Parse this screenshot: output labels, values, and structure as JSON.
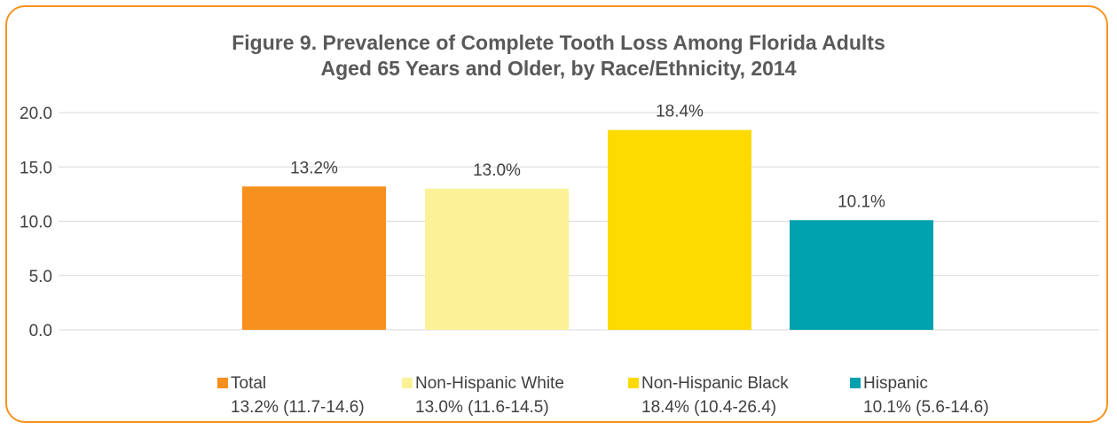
{
  "chart_data": {
    "type": "bar",
    "title_lines": [
      "Figure 9. Prevalence of Complete Tooth Loss Among Florida Adults",
      "Aged 65 Years and Older, by Race/Ethnicity, 2014"
    ],
    "categories": [
      "Total",
      "Non-Hispanic White",
      "Non-Hispanic Black",
      "Hispanic"
    ],
    "values": [
      13.2,
      13.0,
      18.4,
      10.1
    ],
    "data_labels": [
      "13.2%",
      "13.0%",
      "18.4%",
      "10.1%"
    ],
    "confidence_intervals": [
      "13.2% (11.7-14.6)",
      "13.0% (11.6-14.5)",
      "18.4% (10.4-26.4)",
      "10.1% (5.6-14.6)"
    ],
    "colors": [
      "#F7901E",
      "#FBF298",
      "#FDDA00",
      "#00A1AE"
    ],
    "yticks": [
      "0.0",
      "5.0",
      "10.0",
      "15.0",
      "20.0"
    ],
    "ylim": [
      0,
      20
    ],
    "grid": true,
    "legend_position": "bottom",
    "xlabel": "",
    "ylabel": ""
  }
}
